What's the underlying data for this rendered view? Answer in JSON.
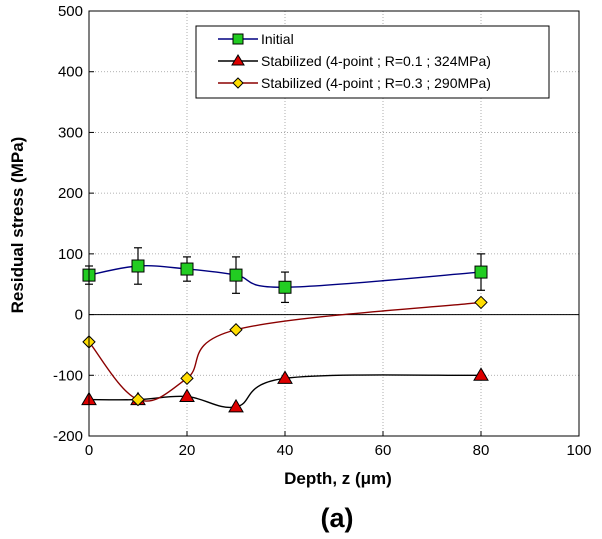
{
  "chart_data": {
    "type": "line",
    "xlabel": "Depth, z (μm)",
    "ylabel": "Residual stress (MPa)",
    "panel_label": "(a)",
    "xlim": [
      0,
      100
    ],
    "ylim": [
      -200,
      500
    ],
    "xticks": [
      0,
      20,
      40,
      60,
      80,
      100
    ],
    "yticks": [
      -200,
      -100,
      0,
      100,
      200,
      300,
      400,
      500
    ],
    "xtick_labels": [
      "0",
      "20",
      "40",
      "60",
      "80",
      "100"
    ],
    "ytick_labels": [
      "-200",
      "-100",
      "0",
      "100",
      "200",
      "300",
      "400",
      "500"
    ],
    "grid": true,
    "zero_line": true,
    "legend_position": "top-right",
    "series": [
      {
        "name": "Initial",
        "line_color": "#000080",
        "marker": "square",
        "marker_fill": "#22cc22",
        "x": [
          0,
          10,
          20,
          30,
          40,
          80
        ],
        "y": [
          65,
          80,
          75,
          65,
          45,
          70
        ],
        "err": [
          15,
          30,
          20,
          30,
          25,
          30
        ]
      },
      {
        "name": "Stabilized (4-point ; R=0.1 ; 324MPa)",
        "line_color": "#000000",
        "marker": "triangle",
        "marker_fill": "#dd0000",
        "x": [
          0,
          10,
          20,
          30,
          40,
          80
        ],
        "y": [
          -140,
          -140,
          -135,
          -152,
          -105,
          -100
        ]
      },
      {
        "name": "Stabilized (4-point ; R=0.3 ; 290MPa)",
        "line_color": "#8b0000",
        "marker": "diamond",
        "marker_fill": "#ffdd00",
        "x": [
          0,
          10,
          20,
          30,
          80
        ],
        "y": [
          -45,
          -140,
          -105,
          -25,
          20
        ]
      }
    ]
  }
}
